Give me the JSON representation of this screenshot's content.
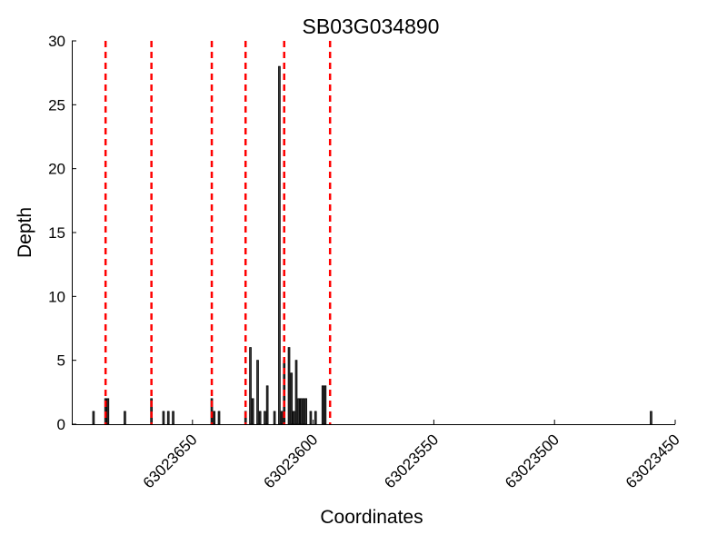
{
  "chart_data": {
    "type": "bar",
    "title": "SB03G034890",
    "xlabel": "Coordinates",
    "ylabel": "Depth",
    "x_inverted": true,
    "xlim": [
      63023700,
      63023450
    ],
    "ylim": [
      0,
      30
    ],
    "x_ticks": [
      63023650,
      63023600,
      63023550,
      63023500,
      63023450
    ],
    "x_tick_labels": [
      "63023650",
      "63023600",
      "63023550",
      "63023500",
      "63023450"
    ],
    "y_ticks": [
      0,
      5,
      10,
      15,
      20,
      25,
      30
    ],
    "y_tick_labels": [
      "0",
      "5",
      "10",
      "15",
      "20",
      "25",
      "30"
    ],
    "grid": false,
    "bar_color": "#3a3a3a",
    "marker_color": "#ff0000",
    "bars": [
      {
        "x": 63023691,
        "y": 1
      },
      {
        "x": 63023686,
        "y": 2
      },
      {
        "x": 63023685,
        "y": 2
      },
      {
        "x": 63023678,
        "y": 1
      },
      {
        "x": 63023667,
        "y": 2
      },
      {
        "x": 63023662,
        "y": 1
      },
      {
        "x": 63023660,
        "y": 1
      },
      {
        "x": 63023658,
        "y": 1
      },
      {
        "x": 63023642,
        "y": 2
      },
      {
        "x": 63023641,
        "y": 1
      },
      {
        "x": 63023639,
        "y": 1
      },
      {
        "x": 63023628,
        "y": 1
      },
      {
        "x": 63023626,
        "y": 6
      },
      {
        "x": 63023625,
        "y": 2
      },
      {
        "x": 63023623,
        "y": 5
      },
      {
        "x": 63023622,
        "y": 1
      },
      {
        "x": 63023620,
        "y": 1
      },
      {
        "x": 63023619,
        "y": 3
      },
      {
        "x": 63023616,
        "y": 1
      },
      {
        "x": 63023614,
        "y": 28
      },
      {
        "x": 63023613,
        "y": 1
      },
      {
        "x": 63023612,
        "y": 5
      },
      {
        "x": 63023610,
        "y": 6
      },
      {
        "x": 63023609,
        "y": 4
      },
      {
        "x": 63023608,
        "y": 1
      },
      {
        "x": 63023607,
        "y": 5
      },
      {
        "x": 63023606,
        "y": 2
      },
      {
        "x": 63023605,
        "y": 2
      },
      {
        "x": 63023604,
        "y": 2
      },
      {
        "x": 63023603,
        "y": 2
      },
      {
        "x": 63023601,
        "y": 1
      },
      {
        "x": 63023599,
        "y": 1
      },
      {
        "x": 63023596,
        "y": 3
      },
      {
        "x": 63023595,
        "y": 3
      },
      {
        "x": 63023460,
        "y": 1
      }
    ],
    "markers": [
      63023686,
      63023667,
      63023642,
      63023628,
      63023612,
      63023593
    ]
  }
}
